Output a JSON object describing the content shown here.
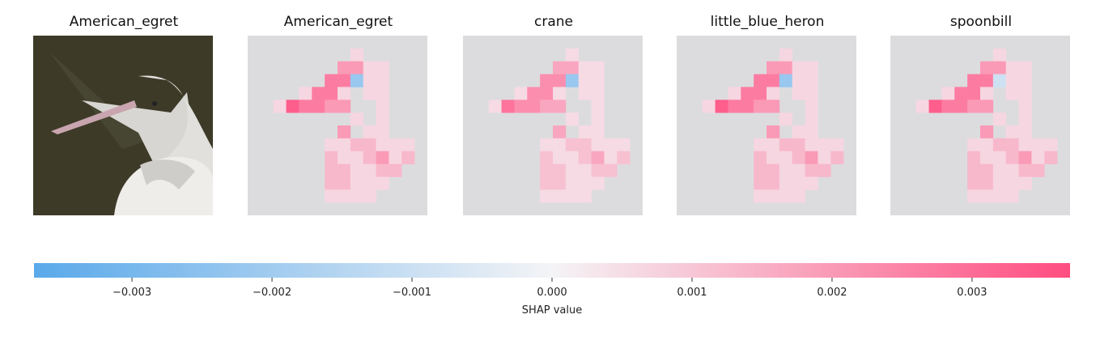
{
  "colors": {
    "negative": "#5aa9ea",
    "neutral": "#f4f4f6",
    "positive": "#ff4d80",
    "photo_background": "#3d3b28",
    "heatmap_background": "#dcdcde"
  },
  "panels": [
    {
      "title": "American_egret",
      "kind": "input-image"
    },
    {
      "title": "American_egret",
      "kind": "shap-heatmap"
    },
    {
      "title": "crane",
      "kind": "shap-heatmap"
    },
    {
      "title": "little_blue_heron",
      "kind": "shap-heatmap"
    },
    {
      "title": "spoonbill",
      "kind": "shap-heatmap"
    }
  ],
  "chart_data": {
    "type": "heatmap",
    "colorbar": {
      "label": "SHAP value",
      "range": [
        -0.0037,
        0.0037
      ],
      "ticks": [
        -0.003,
        -0.002,
        -0.001,
        0.0,
        0.001,
        0.002,
        0.003
      ],
      "tick_labels": [
        "−0.003",
        "−0.002",
        "−0.001",
        "0.000",
        "0.001",
        "0.002",
        "0.003"
      ]
    }
  }
}
